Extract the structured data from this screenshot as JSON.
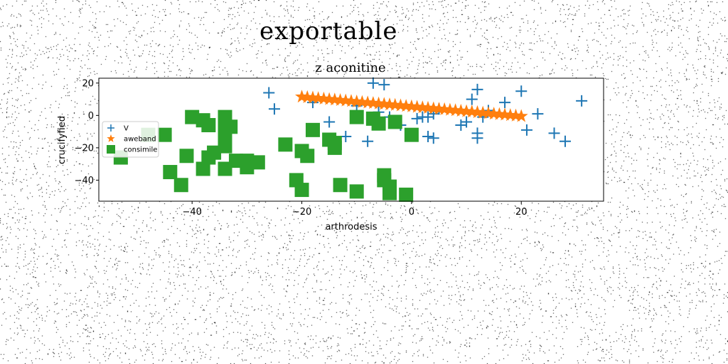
{
  "suptitle": "exportable",
  "chart_data": {
    "type": "scatter",
    "title": "z aconitine",
    "xlabel": "arthrodesis",
    "ylabel": "crucifyfied",
    "xlim": [
      -57,
      35
    ],
    "ylim": [
      -53,
      23
    ],
    "xticks": [
      -40,
      -20,
      0,
      20
    ],
    "yticks": [
      -40,
      -20,
      0,
      20
    ],
    "grid": false,
    "legend_position": "center-left",
    "series": [
      {
        "name": "V",
        "marker": "plus",
        "color": "#1f77b4",
        "points": [
          [
            -26,
            14
          ],
          [
            -25,
            4
          ],
          [
            -18,
            8
          ],
          [
            -15,
            -4
          ],
          [
            -12,
            -13
          ],
          [
            -8,
            -16
          ],
          [
            -7,
            20
          ],
          [
            -5,
            19
          ],
          [
            -4,
            -1
          ],
          [
            -2,
            -6
          ],
          [
            1,
            -2
          ],
          [
            2,
            -1
          ],
          [
            3,
            -1
          ],
          [
            3,
            -13
          ],
          [
            4,
            -14
          ],
          [
            4,
            1
          ],
          [
            5,
            4
          ],
          [
            9,
            -6
          ],
          [
            10,
            -4
          ],
          [
            11,
            10
          ],
          [
            12,
            16
          ],
          [
            12,
            -11
          ],
          [
            12,
            -14
          ],
          [
            13,
            -1
          ],
          [
            14,
            3
          ],
          [
            17,
            8
          ],
          [
            20,
            15
          ],
          [
            21,
            -9
          ],
          [
            23,
            1
          ],
          [
            26,
            -11
          ],
          [
            28,
            -16
          ],
          [
            31,
            9
          ],
          [
            -3,
            -4
          ],
          [
            -6,
            2
          ],
          [
            -10,
            6
          ]
        ]
      },
      {
        "name": "aweband",
        "marker": "star",
        "color": "#ff7f0e",
        "points": [
          [
            -20,
            11.5
          ],
          [
            -19,
            11.2
          ],
          [
            -18,
            10.9
          ],
          [
            -17,
            10.6
          ],
          [
            -16,
            10.3
          ],
          [
            -15,
            10.0
          ],
          [
            -14,
            9.7
          ],
          [
            -13,
            9.4
          ],
          [
            -12,
            9.1
          ],
          [
            -11,
            8.8
          ],
          [
            -10,
            8.5
          ],
          [
            -9,
            8.2
          ],
          [
            -8,
            7.9
          ],
          [
            -7,
            7.6
          ],
          [
            -6,
            7.3
          ],
          [
            -5,
            7.0
          ],
          [
            -4,
            6.7
          ],
          [
            -3,
            6.4
          ],
          [
            -2,
            6.1
          ],
          [
            -1,
            5.8
          ],
          [
            0,
            5.5
          ],
          [
            1,
            5.2
          ],
          [
            2,
            4.9
          ],
          [
            3,
            4.6
          ],
          [
            4,
            4.3
          ],
          [
            5,
            4.0
          ],
          [
            6,
            3.7
          ],
          [
            7,
            3.4
          ],
          [
            8,
            3.1
          ],
          [
            9,
            2.8
          ],
          [
            10,
            2.5
          ],
          [
            11,
            2.2
          ],
          [
            12,
            1.9
          ],
          [
            13,
            1.6
          ],
          [
            14,
            1.3
          ],
          [
            15,
            1.0
          ],
          [
            16,
            0.7
          ],
          [
            17,
            0.4
          ],
          [
            18,
            0.1
          ],
          [
            19,
            -0.2
          ],
          [
            20,
            -0.5
          ]
        ]
      },
      {
        "name": "consimile",
        "marker": "square",
        "color": "#2ca02c",
        "points": [
          [
            -53,
            -26
          ],
          [
            -48,
            -12
          ],
          [
            -45,
            -12
          ],
          [
            -44,
            -35
          ],
          [
            -42,
            -43
          ],
          [
            -41,
            -25
          ],
          [
            -40,
            -1
          ],
          [
            -38,
            -3
          ],
          [
            -38,
            -33
          ],
          [
            -37,
            -6
          ],
          [
            -37,
            -26
          ],
          [
            -36,
            -23
          ],
          [
            -34,
            -1
          ],
          [
            -34,
            -5
          ],
          [
            -34,
            -12
          ],
          [
            -34,
            -19
          ],
          [
            -34,
            -33
          ],
          [
            -33,
            -7
          ],
          [
            -32,
            -28
          ],
          [
            -30,
            -28
          ],
          [
            -30,
            -32
          ],
          [
            -28,
            -29
          ],
          [
            -23,
            -18
          ],
          [
            -21,
            -40
          ],
          [
            -20,
            -22
          ],
          [
            -20,
            -46
          ],
          [
            -19,
            -25
          ],
          [
            -18,
            -9
          ],
          [
            -15,
            -15
          ],
          [
            -14,
            -17
          ],
          [
            -14,
            -20
          ],
          [
            -13,
            -43
          ],
          [
            -10,
            -1
          ],
          [
            -10,
            -47
          ],
          [
            -7,
            -2
          ],
          [
            -6,
            -5
          ],
          [
            -5,
            -37
          ],
          [
            -5,
            -40
          ],
          [
            -4,
            -44
          ],
          [
            -4,
            -48
          ],
          [
            -3,
            -4
          ],
          [
            -1,
            -49
          ],
          [
            0,
            -12
          ]
        ]
      }
    ]
  }
}
